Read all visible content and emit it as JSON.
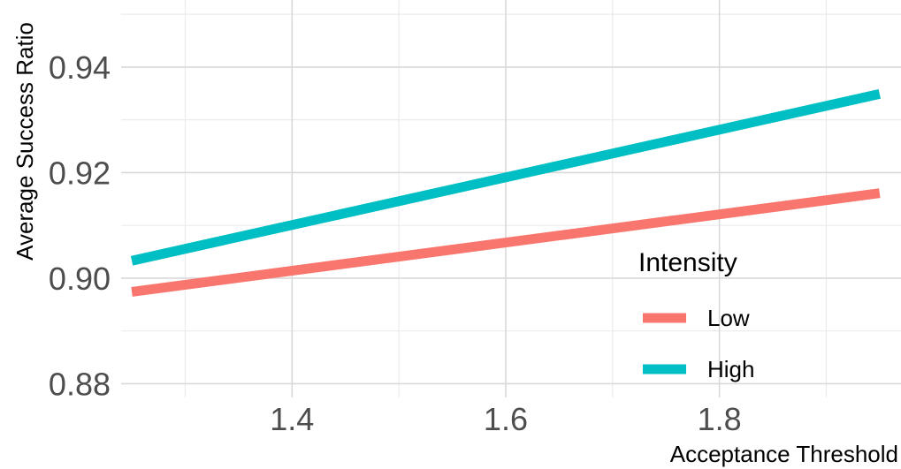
{
  "chart_data": {
    "type": "line",
    "xlabel": "Acceptance Threshold",
    "ylabel": "Average Success Ratio",
    "xlim": [
      1.24,
      1.97
    ],
    "ylim": [
      0.8774,
      0.9527
    ],
    "x_ticks": [
      1.4,
      1.6,
      1.8
    ],
    "x_tick_labels": [
      "1.4",
      "1.6",
      "1.8"
    ],
    "x_minor_ticks": [
      1.3,
      1.5,
      1.7,
      1.9
    ],
    "y_ticks": [
      0.88,
      0.9,
      0.92,
      0.94
    ],
    "y_tick_labels": [
      "0.88",
      "0.90",
      "0.92",
      "0.94"
    ],
    "y_minor_ticks": [
      0.89,
      0.91,
      0.93,
      0.95
    ],
    "grid": true,
    "legend": {
      "title": "Intensity",
      "position": "bottom-right"
    },
    "series": [
      {
        "name": "Low",
        "color": "#f8766d",
        "x": [
          1.25,
          1.95
        ],
        "y": [
          0.8974,
          0.9161
        ]
      },
      {
        "name": "High",
        "color": "#00bfc4",
        "x": [
          1.25,
          1.95
        ],
        "y": [
          0.9033,
          0.9349
        ]
      }
    ]
  }
}
